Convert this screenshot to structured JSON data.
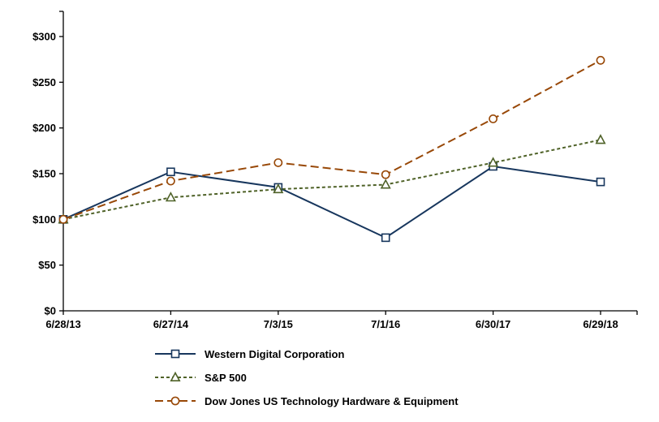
{
  "chart_data": {
    "type": "line",
    "title": "",
    "xlabel": "",
    "ylabel": "",
    "categories": [
      "6/28/13",
      "6/27/14",
      "7/3/15",
      "7/1/16",
      "6/30/17",
      "6/29/18"
    ],
    "ylim": [
      0,
      300
    ],
    "yticks": [
      0,
      50,
      100,
      150,
      200,
      250,
      300
    ],
    "ytick_labels": [
      "$0",
      "$50",
      "$100",
      "$150",
      "$200",
      "$250",
      "$300"
    ],
    "grid": false,
    "legend_position": "bottom-left",
    "series": [
      {
        "name": "Western Digital Corporation",
        "values": [
          100,
          152,
          135,
          80,
          158,
          141
        ],
        "color": "#17365D",
        "dash": "solid",
        "marker": "square"
      },
      {
        "name": "S&P 500",
        "values": [
          100,
          124,
          133,
          138,
          162,
          187
        ],
        "color": "#4F6228",
        "dash": "short-dash",
        "marker": "triangle"
      },
      {
        "name": "Dow Jones US Technology Hardware & Equipment",
        "values": [
          100,
          142,
          162,
          149,
          210,
          274
        ],
        "color": "#984807",
        "dash": "long-dash",
        "marker": "circle"
      }
    ],
    "colors": {
      "axis": "#000000",
      "text": "#000000",
      "background": "#FFFFFF"
    }
  }
}
